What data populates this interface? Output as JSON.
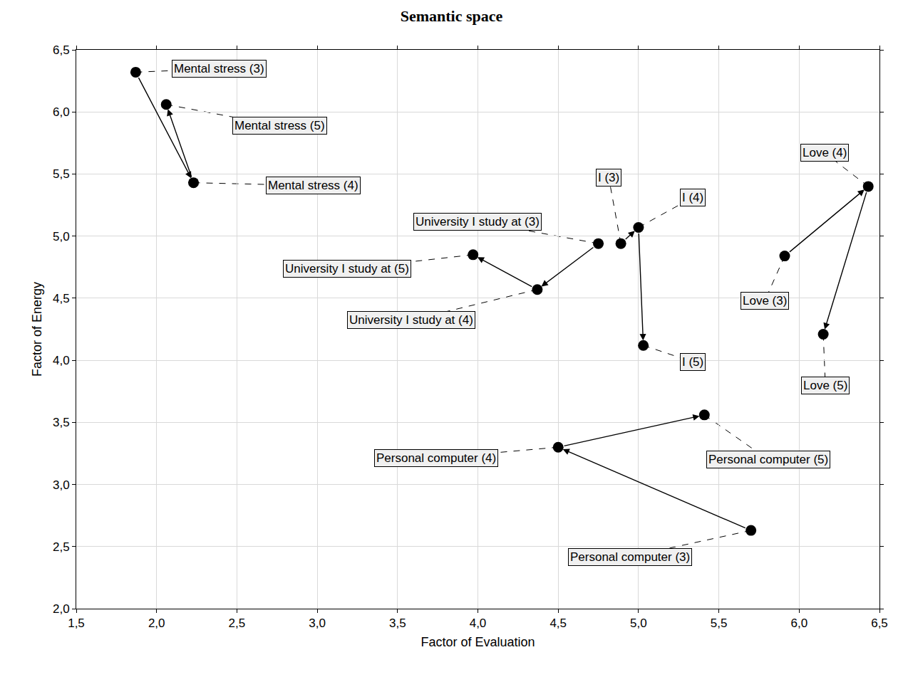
{
  "chart_data": {
    "type": "scatter",
    "title": "Semantic space",
    "x_label": "Factor of Evaluation",
    "y_label": "Factor of Energy",
    "xlim": [
      1.5,
      6.5
    ],
    "ylim": [
      2.0,
      6.5
    ],
    "xticks": [
      {
        "value": 1.5,
        "label": "1,5"
      },
      {
        "value": 2.0,
        "label": "2,0"
      },
      {
        "value": 2.5,
        "label": "2,5"
      },
      {
        "value": 3.0,
        "label": "3,0"
      },
      {
        "value": 3.5,
        "label": "3,5"
      },
      {
        "value": 4.0,
        "label": "4,0"
      },
      {
        "value": 4.5,
        "label": "4,5"
      },
      {
        "value": 5.0,
        "label": "5,0"
      },
      {
        "value": 5.5,
        "label": "5,5"
      },
      {
        "value": 6.0,
        "label": "6,0"
      },
      {
        "value": 6.5,
        "label": "6,5"
      }
    ],
    "yticks": [
      {
        "value": 2.0,
        "label": "2,0"
      },
      {
        "value": 2.5,
        "label": "2,5"
      },
      {
        "value": 3.0,
        "label": "3,0"
      },
      {
        "value": 3.5,
        "label": "3,5"
      },
      {
        "value": 4.0,
        "label": "4,0"
      },
      {
        "value": 4.5,
        "label": "4,5"
      },
      {
        "value": 5.0,
        "label": "5,0"
      },
      {
        "value": 5.5,
        "label": "5,5"
      },
      {
        "value": 6.0,
        "label": "6,0"
      },
      {
        "value": 6.5,
        "label": "6,5"
      }
    ],
    "grid": true,
    "marker": "circle",
    "color": "#000000",
    "line_style": "arrow",
    "series": [
      {
        "labels": [
          "Mental stress (3)",
          "Mental stress (4)",
          "Mental stress (5)"
        ],
        "x": [
          1.87,
          2.23,
          2.06
        ],
        "y": [
          6.32,
          5.43,
          6.06
        ]
      },
      {
        "labels": [
          "University I study at (3)",
          "University I study at (4)",
          "University I study at (5)"
        ],
        "x": [
          4.75,
          4.37,
          3.97
        ],
        "y": [
          4.94,
          4.57,
          4.85
        ]
      },
      {
        "labels": [
          "I (3)",
          "I (4)",
          "I (5)"
        ],
        "x": [
          4.89,
          5.0,
          5.03
        ],
        "y": [
          4.94,
          5.07,
          4.12
        ]
      },
      {
        "labels": [
          "Love (3)",
          "Love (4)",
          "Love (5)"
        ],
        "x": [
          5.91,
          6.43,
          6.15
        ],
        "y": [
          4.84,
          5.4,
          4.21
        ]
      },
      {
        "labels": [
          "Personal computer (3)",
          "Personal computer (4)",
          "Personal computer (5)"
        ],
        "x": [
          5.7,
          4.5,
          5.41
        ],
        "y": [
          2.63,
          3.3,
          3.56
        ]
      }
    ]
  }
}
